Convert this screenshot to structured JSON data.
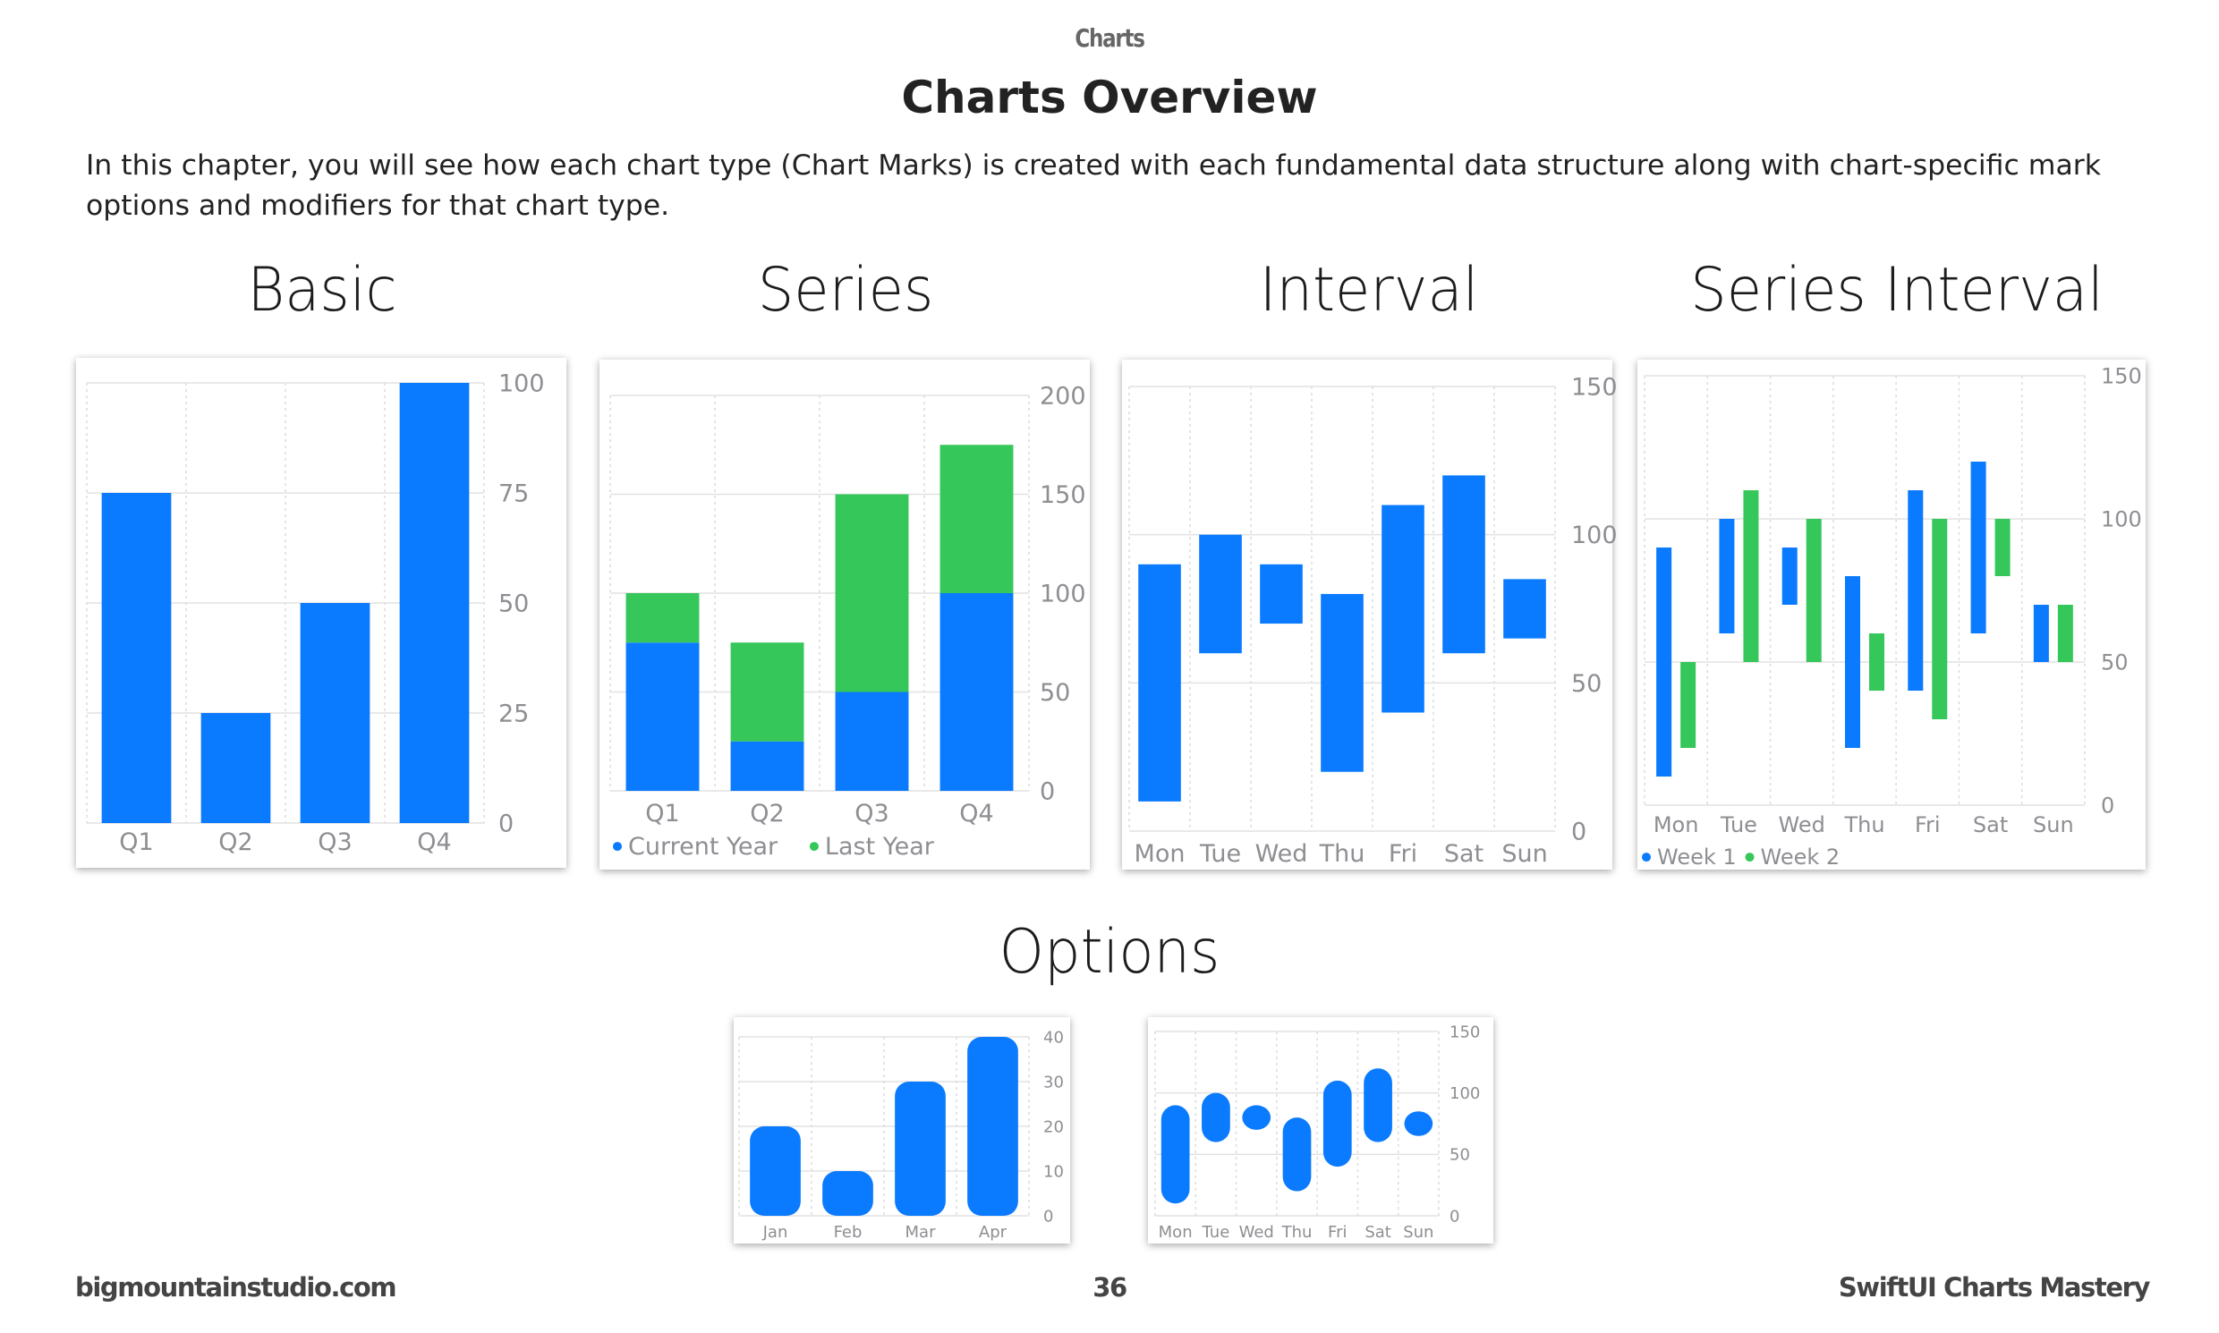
{
  "header": {
    "label": "Charts"
  },
  "page": {
    "title": "Charts Overview",
    "intro": "In this chapter, you will see how each chart type (Chart Marks) is created with each fundamental data structure along with chart-specific mark options and modifiers for that chart type."
  },
  "sections": {
    "basic": "Basic",
    "series": "Series",
    "interval": "Interval",
    "series_interval": "Series Interval",
    "options": "Options"
  },
  "footer": {
    "site": "bigmountainstudio.com",
    "page_number": "36",
    "book": "SwiftUI Charts Mastery"
  },
  "colors": {
    "blue": "#0a7aff",
    "green": "#35c759"
  },
  "chart_data": [
    {
      "id": "basic",
      "type": "bar",
      "categories": [
        "Q1",
        "Q2",
        "Q3",
        "Q4"
      ],
      "values": [
        75,
        25,
        50,
        100
      ],
      "ylim": [
        0,
        100
      ],
      "yticks": [
        0,
        25,
        50,
        75,
        100
      ]
    },
    {
      "id": "series",
      "type": "bar",
      "stacked": true,
      "categories": [
        "Q1",
        "Q2",
        "Q3",
        "Q4"
      ],
      "series": [
        {
          "name": "Current Year",
          "color": "#0a7aff",
          "values": [
            75,
            25,
            50,
            100
          ]
        },
        {
          "name": "Last Year",
          "color": "#35c759",
          "values": [
            25,
            50,
            100,
            75
          ]
        }
      ],
      "ylim": [
        0,
        200
      ],
      "yticks": [
        0,
        50,
        100,
        150,
        200
      ],
      "legend": "bottom-left"
    },
    {
      "id": "interval",
      "type": "bar",
      "categories": [
        "Mon",
        "Tue",
        "Wed",
        "Thu",
        "Fri",
        "Sat",
        "Sun"
      ],
      "ranges": [
        [
          10,
          90
        ],
        [
          60,
          100
        ],
        [
          70,
          90
        ],
        [
          20,
          80
        ],
        [
          40,
          110
        ],
        [
          60,
          120
        ],
        [
          65,
          85
        ]
      ],
      "ylim": [
        0,
        150
      ],
      "yticks": [
        0,
        50,
        100,
        150
      ]
    },
    {
      "id": "series_interval",
      "type": "bar",
      "categories": [
        "Mon",
        "Tue",
        "Wed",
        "Thu",
        "Fri",
        "Sat",
        "Sun"
      ],
      "series": [
        {
          "name": "Week 1",
          "color": "#0a7aff",
          "ranges": [
            [
              10,
              90
            ],
            [
              60,
              100
            ],
            [
              70,
              90
            ],
            [
              20,
              80
            ],
            [
              40,
              110
            ],
            [
              60,
              120
            ],
            [
              50,
              70
            ]
          ]
        },
        {
          "name": "Week 2",
          "color": "#35c759",
          "ranges": [
            [
              20,
              50
            ],
            [
              50,
              110
            ],
            [
              50,
              100
            ],
            [
              40,
              60
            ],
            [
              30,
              100
            ],
            [
              80,
              100
            ],
            [
              50,
              70
            ]
          ]
        }
      ],
      "ylim": [
        0,
        150
      ],
      "yticks": [
        0,
        50,
        100,
        150
      ],
      "legend": "bottom-left"
    },
    {
      "id": "options_bar",
      "type": "bar",
      "rounded": true,
      "categories": [
        "Jan",
        "Feb",
        "Mar",
        "Apr"
      ],
      "values": [
        20,
        10,
        30,
        40
      ],
      "ylim": [
        0,
        40
      ],
      "yticks": [
        0,
        10,
        20,
        30,
        40
      ]
    },
    {
      "id": "options_interval",
      "type": "bar",
      "rounded": true,
      "categories": [
        "Mon",
        "Tue",
        "Wed",
        "Thu",
        "Fri",
        "Sat",
        "Sun"
      ],
      "ranges": [
        [
          10,
          90
        ],
        [
          60,
          100
        ],
        [
          70,
          90
        ],
        [
          20,
          80
        ],
        [
          40,
          110
        ],
        [
          60,
          120
        ],
        [
          65,
          85
        ]
      ],
      "ylim": [
        0,
        150
      ],
      "yticks": [
        0,
        50,
        100,
        150
      ]
    }
  ]
}
